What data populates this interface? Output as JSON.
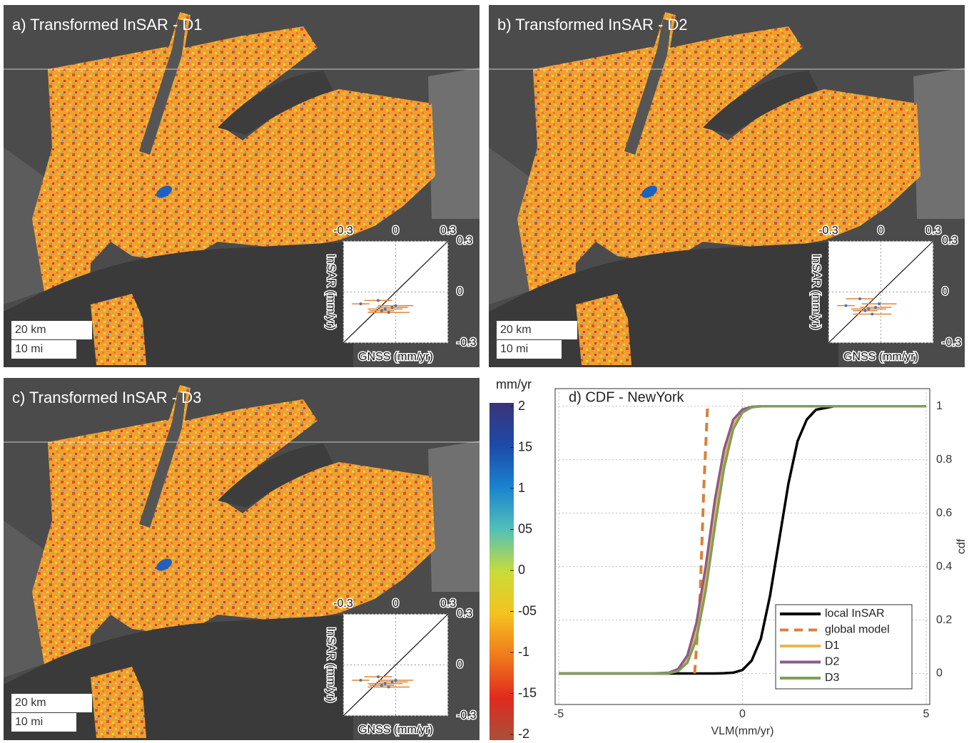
{
  "maps": [
    {
      "title": "a) Transformed InSAR - D1",
      "scale_km": "20 km",
      "scale_mi": "10 mi"
    },
    {
      "title": "b) Transformed InSAR - D2",
      "scale_km": "20 km",
      "scale_mi": "10 mi"
    },
    {
      "title": "c) Transformed InSAR - D3",
      "scale_km": "20 km",
      "scale_mi": "10 mi"
    }
  ],
  "chart_data": [
    {
      "type": "scatter",
      "xlabel": "GNSS (mm/yr)",
      "ylabel": "InSAR (mm/yr)",
      "xlim": [
        -0.3,
        0.3
      ],
      "ylim": [
        -0.3,
        0.3
      ],
      "xticks": [
        -0.3,
        0,
        0.3
      ],
      "yticks": [
        0.3,
        0,
        -0.3
      ],
      "grid": true,
      "color": "#4a78b0",
      "error_color": "#e0843a",
      "x": [
        -0.2,
        -0.1,
        -0.06,
        -0.04,
        -0.02,
        0,
        -0.08
      ],
      "xerr": [
        0.05,
        0.08,
        0.1,
        0.12,
        0.09,
        0.1,
        0.07
      ],
      "values": [
        -0.07,
        -0.05,
        -0.1,
        -0.12,
        -0.09,
        -0.08,
        -0.11
      ]
    },
    {
      "type": "scatter",
      "xlabel": "GNSS (mm/yr)",
      "ylabel": "InSAR (mm/yr)",
      "xlim": [
        -0.3,
        0.3
      ],
      "ylim": [
        -0.3,
        0.3
      ],
      "xticks": [
        -0.3,
        0,
        0.3
      ],
      "yticks": [
        0.3,
        0,
        -0.3
      ],
      "grid": true,
      "color": "#4a78b0",
      "error_color": "#e0843a",
      "x": [
        -0.2,
        -0.12,
        -0.07,
        -0.05,
        -0.03,
        -0.01,
        -0.09
      ],
      "xerr": [
        0.05,
        0.08,
        0.1,
        0.11,
        0.09,
        0.1,
        0.07
      ],
      "values": [
        -0.08,
        -0.04,
        -0.1,
        -0.13,
        -0.09,
        -0.07,
        -0.11
      ]
    },
    {
      "type": "scatter",
      "xlabel": "GNSS (mm/yr)",
      "ylabel": "InSAR (mm/yr)",
      "xlim": [
        -0.3,
        0.3
      ],
      "ylim": [
        -0.3,
        0.3
      ],
      "xticks": [
        -0.3,
        0,
        0.3
      ],
      "yticks": [
        0.3,
        0,
        -0.3
      ],
      "grid": true,
      "color": "#4a78b0",
      "error_color": "#e0843a",
      "x": [
        -0.2,
        -0.1,
        -0.06,
        -0.04,
        -0.02,
        0,
        -0.08
      ],
      "xerr": [
        0.05,
        0.08,
        0.1,
        0.12,
        0.09,
        0.1,
        0.07
      ],
      "values": [
        -0.09,
        -0.07,
        -0.11,
        -0.13,
        -0.1,
        -0.09,
        -0.12
      ]
    },
    {
      "type": "colorbar",
      "title": "mm/yr",
      "ylim": [
        -2,
        2
      ],
      "yticks": [
        2,
        {
          "value": 1.5,
          "label": "15"
        },
        1,
        {
          "value": 0.5,
          "label": "05"
        },
        0,
        {
          "value": -0.5,
          "label": "-05"
        },
        -1,
        {
          "value": -1.5,
          "label": "-15"
        },
        -2
      ],
      "colors": [
        "#a8503a",
        "#e02a1e",
        "#f07a1c",
        "#f5c21e",
        "#c8dc3a",
        "#52c0b8",
        "#1a82d0",
        "#1d4aa8",
        "#3a3478"
      ]
    },
    {
      "type": "line",
      "title": "d) CDF - NewYork",
      "xlabel": "VLM(mm/yr)",
      "ylabel": "cdf",
      "xlim": [
        -5,
        5
      ],
      "ylim": [
        -0.1,
        1.05
      ],
      "xticks": [
        -5,
        0,
        5
      ],
      "yticks": [
        0,
        0.2,
        0.4,
        0.6,
        0.8,
        1
      ],
      "grid": true,
      "legend": "lower right",
      "x": [
        -5,
        -4,
        -3,
        -2.5,
        -2,
        -1.75,
        -1.5,
        -1.25,
        -1,
        -0.75,
        -0.5,
        -0.25,
        0,
        0.25,
        0.5,
        0.75,
        1,
        1.25,
        1.5,
        1.75,
        2,
        2.5,
        3,
        4,
        5
      ],
      "series": [
        {
          "name": "local InSAR",
          "color": "#000000",
          "values": [
            0,
            0,
            0,
            0,
            0,
            0,
            0,
            0,
            0,
            0,
            0.001,
            0.003,
            0.013,
            0.048,
            0.13,
            0.29,
            0.5,
            0.71,
            0.87,
            0.95,
            0.987,
            1,
            1,
            1,
            1
          ]
        },
        {
          "name": "global model",
          "color": "#d9803a",
          "dashed": true,
          "x": [
            -1.3,
            -1.15,
            -1.05,
            -0.95
          ],
          "values": [
            0,
            0.3,
            0.7,
            1
          ]
        },
        {
          "name": "D1",
          "color": "#e8b84a",
          "values": [
            0,
            0,
            0,
            0,
            0.002,
            0.012,
            0.052,
            0.16,
            0.35,
            0.6,
            0.81,
            0.93,
            0.983,
            0.997,
            1,
            1,
            1,
            1,
            1,
            1,
            1,
            1,
            1,
            1,
            1
          ]
        },
        {
          "name": "D2",
          "color": "#8e5a8c",
          "values": [
            0,
            0,
            0,
            0,
            0.003,
            0.017,
            0.067,
            0.19,
            0.4,
            0.65,
            0.84,
            0.95,
            0.988,
            0.998,
            1,
            1,
            1,
            1,
            1,
            1,
            1,
            1,
            1,
            1,
            1
          ]
        },
        {
          "name": "D3",
          "color": "#7f9e5c",
          "values": [
            0,
            0,
            0,
            0,
            0.001,
            0.009,
            0.04,
            0.13,
            0.31,
            0.55,
            0.77,
            0.915,
            0.977,
            0.996,
            1,
            1,
            1,
            1,
            1,
            1,
            1,
            1,
            1,
            1,
            1
          ]
        }
      ]
    }
  ]
}
